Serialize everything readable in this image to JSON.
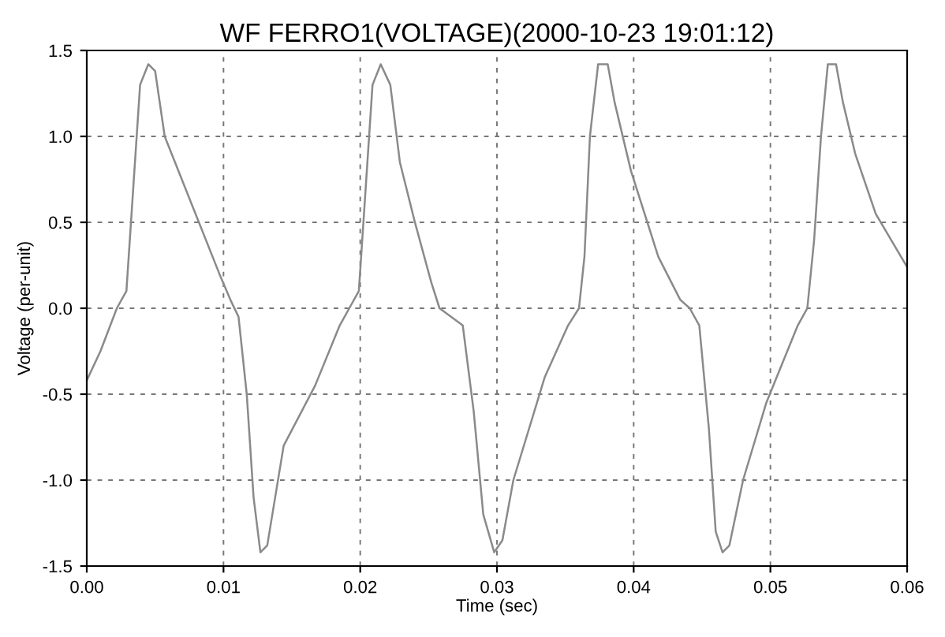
{
  "chart_data": {
    "type": "line",
    "title": "WF FERRO1(VOLTAGE)(2000-10-23 19:01:12)",
    "xlabel": "Time (sec)",
    "ylabel": "Voltage (per-unit)",
    "series": [
      {
        "color": "#8a8a8a",
        "x": [
          0.0,
          0.001,
          0.0022,
          0.0029,
          0.0034,
          0.0039,
          0.0045,
          0.005,
          0.0057,
          0.0077,
          0.0097,
          0.0105,
          0.0111,
          0.0117,
          0.0122,
          0.0127,
          0.0132,
          0.0144,
          0.0167,
          0.0185,
          0.0192,
          0.0199,
          0.0204,
          0.0209,
          0.0215,
          0.0222,
          0.0229,
          0.024,
          0.0252,
          0.0258,
          0.0275,
          0.0283,
          0.029,
          0.0298,
          0.0304,
          0.0312,
          0.0335,
          0.0352,
          0.036,
          0.0364,
          0.0368,
          0.0374,
          0.0381,
          0.0386,
          0.0398,
          0.0418,
          0.0434,
          0.0441,
          0.0448,
          0.0455,
          0.046,
          0.0465,
          0.047,
          0.048,
          0.0497,
          0.052,
          0.0527,
          0.0532,
          0.0537,
          0.0542,
          0.0548,
          0.0553,
          0.0562,
          0.0577,
          0.06
        ],
        "values": [
          -0.42,
          -0.25,
          0.0,
          0.1,
          0.7,
          1.3,
          1.42,
          1.38,
          1.0,
          0.6,
          0.2,
          0.05,
          -0.05,
          -0.5,
          -1.1,
          -1.42,
          -1.38,
          -0.8,
          -0.45,
          -0.1,
          0.0,
          0.1,
          0.7,
          1.3,
          1.42,
          1.3,
          0.85,
          0.5,
          0.15,
          0.0,
          -0.1,
          -0.6,
          -1.2,
          -1.42,
          -1.35,
          -1.0,
          -0.4,
          -0.1,
          0.0,
          0.3,
          1.0,
          1.42,
          1.42,
          1.2,
          0.8,
          0.3,
          0.05,
          0.0,
          -0.1,
          -0.7,
          -1.3,
          -1.42,
          -1.38,
          -1.0,
          -0.55,
          -0.1,
          0.0,
          0.4,
          1.0,
          1.42,
          1.42,
          1.2,
          0.9,
          0.55,
          0.24
        ]
      }
    ],
    "xlim": [
      0.0,
      0.06
    ],
    "xticks": [
      {
        "value": 0.0,
        "label": "0.00"
      },
      {
        "value": 0.01,
        "label": "0.01"
      },
      {
        "value": 0.02,
        "label": "0.02"
      },
      {
        "value": 0.03,
        "label": "0.03"
      },
      {
        "value": 0.04,
        "label": "0.04"
      },
      {
        "value": 0.05,
        "label": "0.05"
      },
      {
        "value": 0.06,
        "label": "0.06"
      }
    ],
    "ylim": [
      -1.5,
      1.5
    ],
    "yticks": [
      {
        "value": -1.5,
        "label": "-1.5"
      },
      {
        "value": -1.0,
        "label": "-1.0"
      },
      {
        "value": -0.5,
        "label": "-0.5"
      },
      {
        "value": 0.0,
        "label": "0.0"
      },
      {
        "value": 0.5,
        "label": "0.5"
      },
      {
        "value": 1.0,
        "label": "1.0"
      },
      {
        "value": 1.5,
        "label": "1.5"
      }
    ],
    "grid": true,
    "line_style": "solid",
    "marker": "none"
  }
}
